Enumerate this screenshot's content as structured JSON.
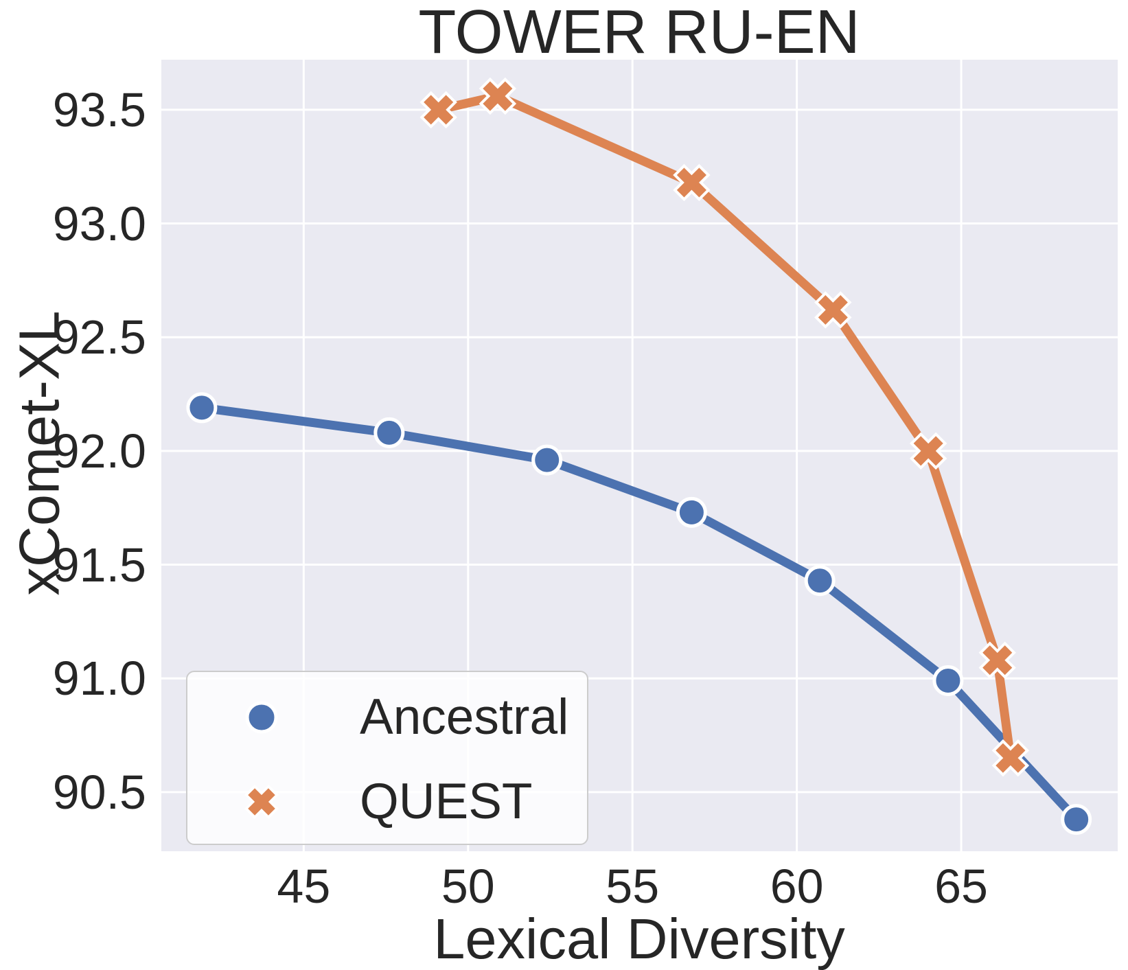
{
  "colors": {
    "figure_background": "#FFFFFF",
    "axes_background": "#EAEAF2",
    "grid": "#FFFFFF",
    "text": "#262626",
    "ancestral_blue": "#4C72B0",
    "quest_orange": "#DD8452",
    "marker_edge": "#FFFFFF",
    "legend_border": "#CCCCCC"
  },
  "chart_data": {
    "type": "line",
    "title": "TOWER RU-EN",
    "xlabel": "Lexical Diversity",
    "ylabel": "xComet-XL",
    "xlim": [
      40.67,
      69.76
    ],
    "ylim": [
      90.24,
      93.72
    ],
    "xticks": [
      45,
      50,
      55,
      60,
      65
    ],
    "xtick_labels": [
      "45",
      "50",
      "55",
      "60",
      "65"
    ],
    "yticks": [
      90.5,
      91.0,
      91.5,
      92.0,
      92.5,
      93.0,
      93.5
    ],
    "ytick_labels": [
      "90.5",
      "91.0",
      "91.5",
      "92.0",
      "92.5",
      "93.0",
      "93.5"
    ],
    "grid": true,
    "legend_position": "lower left",
    "series": [
      {
        "name": "Ancestral",
        "marker": "circle",
        "color": "#4C72B0",
        "points": [
          [
            41.9,
            92.19
          ],
          [
            47.6,
            92.08
          ],
          [
            52.4,
            91.96
          ],
          [
            56.8,
            91.73
          ],
          [
            60.7,
            91.43
          ],
          [
            64.6,
            90.99
          ],
          [
            68.5,
            90.38
          ]
        ]
      },
      {
        "name": "QUEST",
        "marker": "x",
        "color": "#DD8452",
        "points": [
          [
            49.1,
            93.5
          ],
          [
            50.9,
            93.56
          ],
          [
            56.8,
            93.18
          ],
          [
            61.1,
            92.62
          ],
          [
            64.0,
            92.0
          ],
          [
            66.1,
            91.08
          ],
          [
            66.5,
            90.65
          ]
        ]
      }
    ]
  }
}
